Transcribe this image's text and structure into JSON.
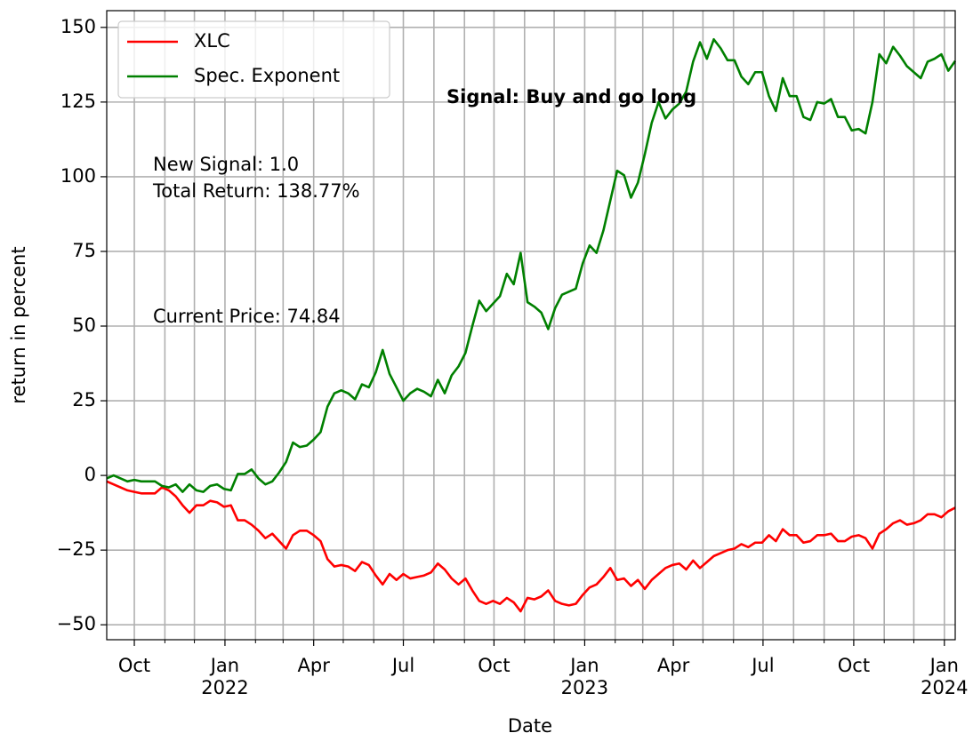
{
  "chart_data": {
    "type": "line",
    "x_label": "Date",
    "y_label": "return in percent",
    "xlim": [
      0,
      123
    ],
    "ylim": [
      -55,
      155.6
    ],
    "xticks": [
      {
        "value": 4,
        "label": "Oct"
      },
      {
        "value": 17.14,
        "label": "Jan\n2022"
      },
      {
        "value": 30,
        "label": "Apr"
      },
      {
        "value": 43,
        "label": "Jul"
      },
      {
        "value": 56.14,
        "label": "Oct"
      },
      {
        "value": 69.29,
        "label": "Jan\n2023"
      },
      {
        "value": 82.14,
        "label": "Apr"
      },
      {
        "value": 95.14,
        "label": "Jul"
      },
      {
        "value": 108.29,
        "label": "Oct"
      },
      {
        "value": 121.43,
        "label": "Jan\n2024"
      }
    ],
    "xminor_ticks": [
      8.43,
      12.71,
      21.57,
      25.57,
      34.29,
      38.71,
      47.43,
      51.86,
      60.57,
      64.86,
      73.71,
      77.71,
      86.43,
      90.86,
      99.57,
      104,
      112.71,
      117
    ],
    "yticks": [
      {
        "value": -50,
        "label": "−50"
      },
      {
        "value": -25,
        "label": "−25"
      },
      0,
      25,
      50,
      75,
      100,
      125,
      150
    ],
    "grid": true,
    "legend": "upper left",
    "annotations": [
      {
        "text": "New Signal: 1.0"
      },
      {
        "text": "Total Return: 138.77%"
      },
      {
        "text": "Current Price: 74.84"
      },
      {
        "text": "Signal: Buy and go long",
        "color": "#008000"
      }
    ],
    "series": [
      {
        "name": "XLC",
        "color": "#ff0000",
        "values": [
          -2,
          -3,
          -4,
          -5,
          -5.5,
          -6,
          -6,
          -6,
          -4,
          -5,
          -7,
          -10,
          -12.5,
          -10,
          -10,
          -8.5,
          -9,
          -10.5,
          -10,
          -15,
          -15,
          -16.5,
          -18.5,
          -21,
          -19.5,
          -22,
          -24.5,
          -20,
          -18.5,
          -18.5,
          -20,
          -22,
          -28,
          -30.5,
          -30,
          -30.5,
          -32,
          -29,
          -30,
          -33.5,
          -36.5,
          -33,
          -35,
          -33,
          -34.5,
          -34,
          -33.5,
          -32.5,
          -29.5,
          -31.5,
          -34.5,
          -36.5,
          -34.5,
          -38.5,
          -42,
          -43,
          -42,
          -43,
          -41,
          -42.5,
          -45.5,
          -41,
          -41.5,
          -40.5,
          -38.5,
          -42,
          -43,
          -43.5,
          -43,
          -40,
          -37.5,
          -36.5,
          -34,
          -31,
          -35,
          -34.5,
          -37,
          -35,
          -38,
          -35,
          -33,
          -31,
          -30,
          -29.5,
          -31.5,
          -28.5,
          -31,
          -29,
          -27,
          -26,
          -25,
          -24.5,
          -23,
          -24,
          -22.5,
          -22.5,
          -20,
          -22,
          -18,
          -20,
          -20,
          -22.5,
          -22,
          -20,
          -20,
          -19.5,
          -22,
          -22,
          -20.5,
          -20,
          -21,
          -24.5,
          -19.5,
          -18,
          -16,
          -15,
          -16.5,
          -16,
          -15,
          -13,
          -13,
          -14,
          -12,
          -10.8
        ]
      },
      {
        "name": "Spec. Exponent",
        "color": "#008000",
        "values": [
          -1,
          0,
          -1,
          -2,
          -1.5,
          -2,
          -2,
          -2,
          -3.5,
          -4,
          -3,
          -5.5,
          -3,
          -5,
          -5.5,
          -3.5,
          -3,
          -4.5,
          -5,
          0.5,
          0.5,
          2,
          -1,
          -3,
          -2,
          1,
          4.5,
          11,
          9.5,
          10,
          12,
          14.5,
          23,
          27.5,
          28.5,
          27.5,
          25.5,
          30.5,
          29.5,
          34.5,
          42,
          34,
          29.5,
          25,
          27.5,
          29,
          28,
          26.5,
          32,
          27.5,
          33.5,
          36.5,
          41,
          50,
          58.5,
          55,
          57.5,
          60,
          67.5,
          64,
          74.5,
          58,
          56.5,
          54.5,
          49,
          56,
          60.5,
          61.5,
          62.5,
          71,
          77,
          74.5,
          82,
          92,
          102,
          100.5,
          93,
          98,
          107.5,
          118,
          125,
          119.5,
          122.5,
          124.5,
          128.5,
          138.5,
          145,
          139.5,
          146,
          143,
          139,
          139,
          133.5,
          131,
          135,
          135,
          127,
          122,
          133,
          127,
          127,
          120,
          119,
          125,
          124.5,
          126,
          120,
          120,
          115.5,
          116,
          114.5,
          125,
          141,
          138,
          143.5,
          140.5,
          137,
          135,
          133,
          138.5,
          139.5,
          141,
          135.5,
          138.77
        ]
      }
    ]
  }
}
